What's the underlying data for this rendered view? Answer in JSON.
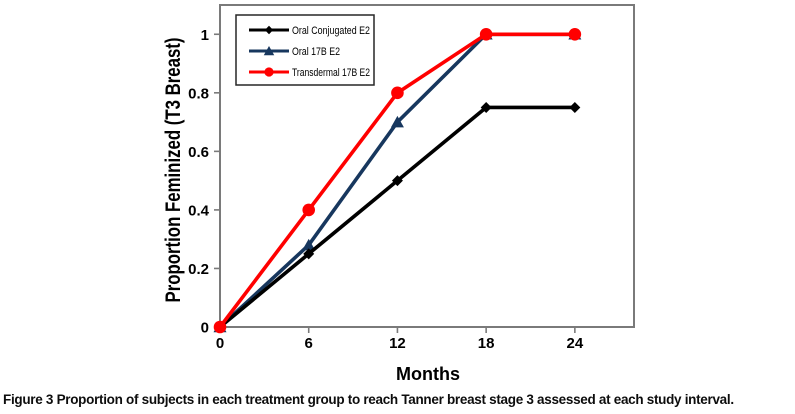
{
  "figure": {
    "caption_label": "Figure 3",
    "caption_text": "Proportion of subjects in each treatment group to reach Tanner breast stage 3 assessed at each study interval."
  },
  "chart_data": {
    "type": "line",
    "title": "",
    "xlabel": "Months",
    "ylabel": "Proportion Feminized (T3 Breast)",
    "x": [
      0,
      6,
      12,
      18,
      24
    ],
    "xticks": [
      0,
      6,
      12,
      18,
      24
    ],
    "yticks": [
      0,
      0.2,
      0.4,
      0.6,
      0.8,
      1
    ],
    "xlim": [
      0,
      28
    ],
    "ylim": [
      0,
      1.1
    ],
    "grid": false,
    "legend_position": "upper-left-inside",
    "axis_color": "#7a7a7a",
    "legend_border_color": "#262626",
    "series": [
      {
        "name": "Oral Conjugated E2",
        "color": "#000000",
        "marker": "diamond",
        "values": [
          0,
          0.25,
          0.5,
          0.75,
          0.75
        ]
      },
      {
        "name": "Oral 17B E2",
        "color": "#17375E",
        "marker": "triangle",
        "values": [
          0,
          0.28,
          0.7,
          1,
          1
        ]
      },
      {
        "name": "Transdermal 17B E2",
        "color": "#FF0000",
        "marker": "circle",
        "values": [
          0,
          0.4,
          0.8,
          1,
          1
        ]
      }
    ]
  }
}
